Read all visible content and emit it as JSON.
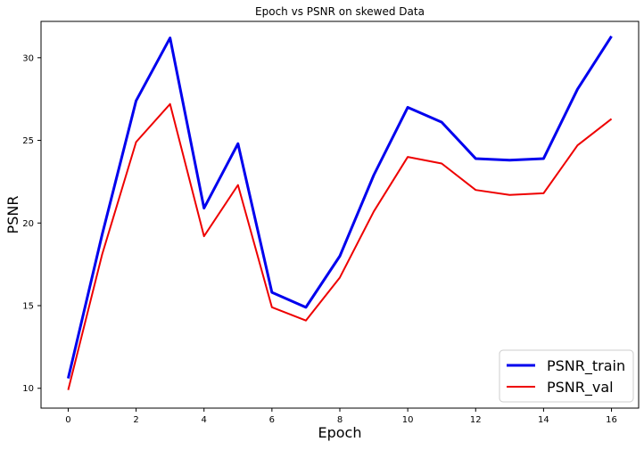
{
  "chart_data": {
    "type": "line",
    "title": "Epoch vs PSNR on skewed Data",
    "xlabel": "Epoch",
    "ylabel": "PSNR",
    "xlim": [
      -0.8,
      16.8
    ],
    "ylim": [
      8.8,
      32.2
    ],
    "x_ticks": [
      0,
      2,
      4,
      6,
      8,
      10,
      12,
      14,
      16
    ],
    "y_ticks": [
      10,
      15,
      20,
      25,
      30
    ],
    "grid": false,
    "legend_position": "bottom-right",
    "x": [
      0,
      1,
      2,
      3,
      4,
      5,
      6,
      7,
      8,
      9,
      10,
      11,
      12,
      13,
      14,
      15,
      16
    ],
    "series": [
      {
        "name": "PSNR_train",
        "color": "#0000ee",
        "values": [
          10.6,
          19.3,
          27.4,
          31.2,
          20.9,
          24.8,
          15.8,
          14.9,
          18.0,
          22.9,
          27.0,
          26.1,
          23.9,
          23.8,
          23.9,
          28.1,
          31.3
        ]
      },
      {
        "name": "PSNR_val",
        "color": "#ee0000",
        "values": [
          9.9,
          18.1,
          24.9,
          27.2,
          19.2,
          22.3,
          14.9,
          14.1,
          16.7,
          20.7,
          24.0,
          23.6,
          22.0,
          21.7,
          21.8,
          24.7,
          26.3
        ]
      }
    ]
  }
}
